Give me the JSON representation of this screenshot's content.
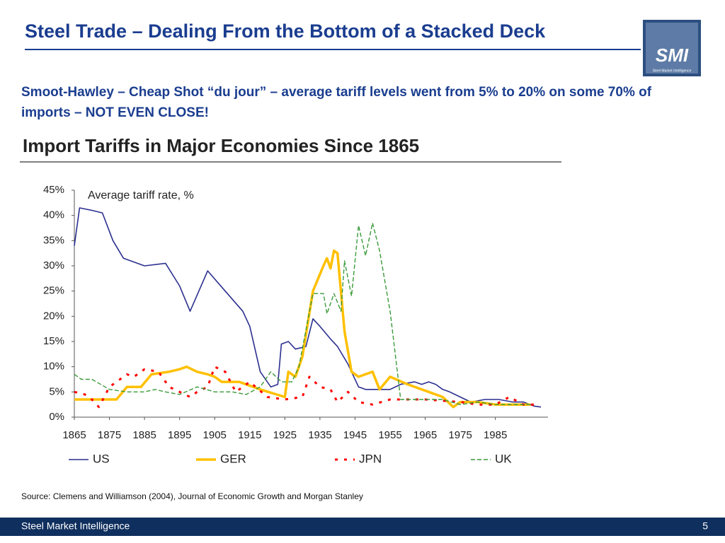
{
  "header": {
    "title": "Steel Trade – Dealing From the Bottom of a Stacked Deck"
  },
  "logo": {
    "text": "SMI",
    "tagline": "Steel Market Intelligence"
  },
  "subtitle": "Smoot-Hawley – Cheap Shot “du jour” – average tariff levels went from 5% to 20% on some 70% of imports – NOT EVEN CLOSE!",
  "chart_data": {
    "type": "line",
    "title": "Import Tariffs in Major Economies Since 1865",
    "ylabel": "Average tariff rate, %",
    "xlim": [
      1865,
      2000
    ],
    "xticks": [
      1865,
      1875,
      1885,
      1895,
      1905,
      1915,
      1925,
      1935,
      1945,
      1955,
      1965,
      1975,
      1985
    ],
    "ylim": [
      0,
      45
    ],
    "yticks": [
      {
        "value": 0,
        "label": "0%"
      },
      {
        "value": 5,
        "label": "5%"
      },
      {
        "value": 10,
        "label": "10%"
      },
      {
        "value": 15,
        "label": "15%"
      },
      {
        "value": 20,
        "label": "20%"
      },
      {
        "value": 25,
        "label": "25%"
      },
      {
        "value": 30,
        "label": "30%"
      },
      {
        "value": 35,
        "label": "35%"
      },
      {
        "value": 40,
        "label": "40%"
      },
      {
        "value": 45,
        "label": "45%"
      }
    ],
    "grid": false,
    "legend": "bottom",
    "series": [
      {
        "name": "US",
        "color": "#2b2f8f",
        "line_style": "solid",
        "line_width": 1.6,
        "x": [
          1865,
          1866.5,
          1870,
          1873,
          1876,
          1879,
          1885,
          1891,
          1895,
          1898,
          1903,
          1908,
          1913,
          1915,
          1918,
          1921,
          1923,
          1924,
          1926,
          1928,
          1931,
          1933,
          1935,
          1938,
          1940,
          1943,
          1946,
          1948,
          1955,
          1958,
          1962,
          1964,
          1966,
          1968,
          1970,
          1972,
          1975,
          1978,
          1982,
          1986,
          1990,
          1993,
          1996,
          1998
        ],
        "values": [
          34,
          41.5,
          41,
          40.5,
          35,
          31.5,
          30,
          30.5,
          26,
          21,
          29,
          25,
          21,
          18,
          9,
          6,
          6.5,
          14.5,
          15,
          13.5,
          14,
          19.5,
          18,
          15.5,
          14,
          10.5,
          6,
          5.5,
          5.5,
          6.5,
          7,
          6.5,
          7,
          6.5,
          5.5,
          5,
          4,
          3,
          3.5,
          3.5,
          3,
          3,
          2.2,
          2
        ]
      },
      {
        "name": "GER",
        "color": "#ffc000",
        "line_style": "solid",
        "line_width": 3.5,
        "x": [
          1865,
          1877,
          1880,
          1884,
          1887,
          1892,
          1895,
          1897,
          1900,
          1903,
          1905,
          1907,
          1912,
          1918,
          1925,
          1926,
          1928,
          1930,
          1933,
          1936,
          1937,
          1938,
          1939,
          1940,
          1942,
          1944,
          1946,
          1950,
          1952,
          1955,
          1960,
          1966,
          1970,
          1973,
          1975,
          1980,
          1985,
          1990,
          1995
        ],
        "values": [
          3.5,
          3.5,
          6,
          6,
          8.5,
          9,
          9.5,
          10,
          9,
          8.5,
          8,
          7,
          7,
          5.5,
          4,
          9,
          8,
          12,
          25,
          30,
          31.5,
          29.5,
          33,
          32.5,
          17,
          9,
          8,
          9,
          5.5,
          8,
          6.5,
          5,
          4,
          2,
          3,
          3,
          2.5,
          2.5,
          2.5
        ]
      },
      {
        "name": "JPN",
        "color": "#ff0000",
        "line_style": "dotted",
        "line_width": 3,
        "x": [
          1865,
          1868,
          1870,
          1872,
          1875,
          1880,
          1882,
          1885,
          1889,
          1892,
          1895,
          1898,
          1900,
          1903,
          1905,
          1908,
          1911,
          1915,
          1920,
          1925,
          1930,
          1932,
          1935,
          1938,
          1940,
          1943,
          1946,
          1950,
          1955,
          1965,
          1975,
          1980,
          1985,
          1989,
          1993,
          1996
        ],
        "values": [
          5,
          4.5,
          3.5,
          2,
          6,
          8.5,
          8,
          9.5,
          9,
          6,
          5,
          4,
          5,
          6,
          10,
          9,
          5,
          7,
          4,
          3.5,
          4,
          8,
          6,
          5.5,
          3,
          5,
          3,
          2.5,
          3.5,
          3.5,
          3,
          2.5,
          2.5,
          4,
          2.5,
          2.5
        ]
      },
      {
        "name": "UK",
        "color": "#3a9a3a",
        "line_style": "dashed",
        "line_width": 1.4,
        "x": [
          1865,
          1867,
          1870,
          1875,
          1880,
          1885,
          1888,
          1891,
          1895,
          1900,
          1905,
          1910,
          1914,
          1918,
          1921,
          1924,
          1927,
          1929,
          1933,
          1936,
          1937,
          1939,
          1941,
          1942,
          1944,
          1946,
          1948,
          1950,
          1952,
          1955,
          1958,
          1965,
          1970,
          1975,
          1980,
          1985,
          1995
        ],
        "values": [
          8.5,
          7.5,
          7.5,
          5.5,
          5,
          5,
          5.5,
          5,
          4.5,
          6,
          5,
          5,
          4.5,
          6,
          9,
          7,
          7,
          10,
          24.5,
          24.5,
          20.5,
          24.5,
          21,
          31,
          24,
          38,
          32,
          38.5,
          33,
          21,
          3.5,
          3.5,
          3.5,
          2.5,
          3,
          2.5,
          2.5
        ]
      }
    ]
  },
  "source": "Source: Clemens and Williamson (2004), Journal of Economic Growth and Morgan Stanley",
  "footer": {
    "left": "Steel Market Intelligence",
    "page": "5"
  }
}
